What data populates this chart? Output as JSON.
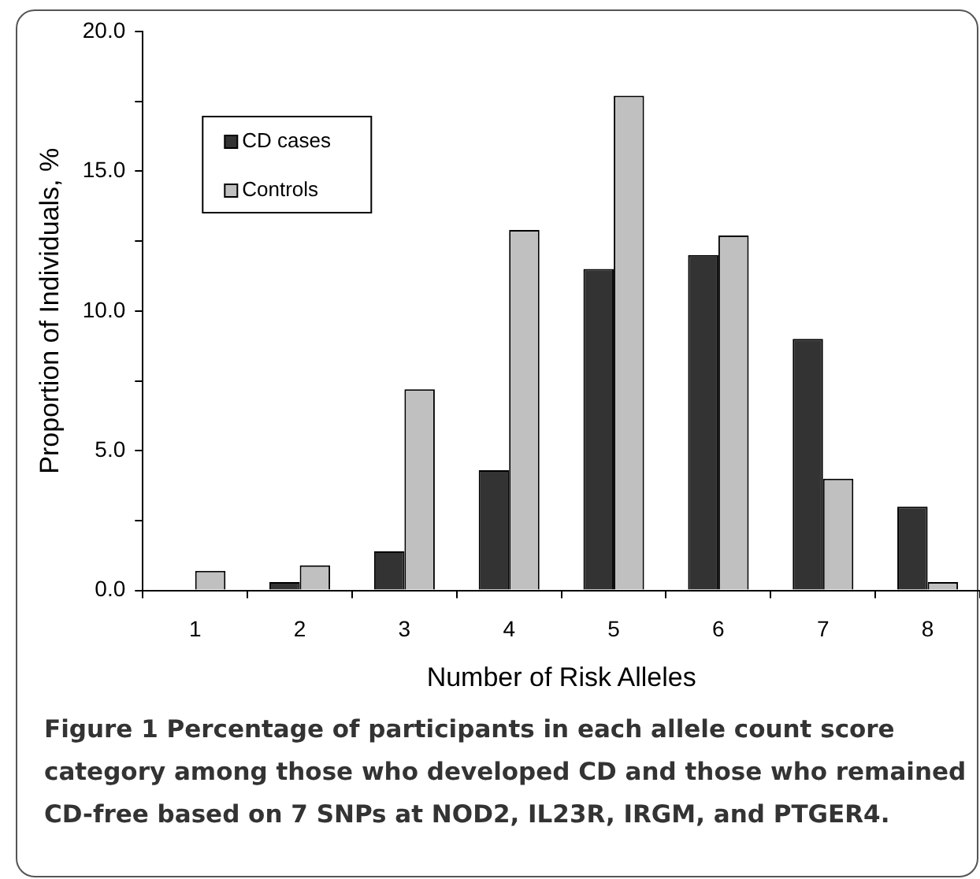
{
  "chart_data": {
    "type": "bar",
    "xlabel": "Number of Risk Alleles",
    "ylabel": "Proportion of Individuals, %",
    "categories": [
      "1",
      "2",
      "3",
      "4",
      "5",
      "6",
      "7",
      "8"
    ],
    "series": [
      {
        "name": "CD cases",
        "color": "#333333",
        "values": [
          0,
          0.3,
          1.4,
          4.3,
          11.5,
          12.0,
          9.0,
          3.0
        ]
      },
      {
        "name": "Controls",
        "color": "#c0c0c0",
        "values": [
          0.7,
          0.9,
          7.2,
          12.9,
          17.7,
          12.7,
          4.0,
          0.3
        ]
      }
    ],
    "ylim": [
      0,
      20
    ],
    "yticks": [
      {
        "value": 0,
        "label": "0.0"
      },
      {
        "value": 2.5,
        "label": null
      },
      {
        "value": 5,
        "label": "5.0"
      },
      {
        "value": 7.5,
        "label": null
      },
      {
        "value": 10,
        "label": "10.0"
      },
      {
        "value": 12.5,
        "label": null
      },
      {
        "value": 15,
        "label": "15.0"
      },
      {
        "value": 17.5,
        "label": null
      },
      {
        "value": 20,
        "label": "20.0"
      }
    ],
    "grid": false,
    "legend": "top left",
    "annotations": [
      "Figure 1 Percentage of participants in each allele count score category among those who developed CD and those who remained CD-free based on 7 SNPs at NOD2, IL23R, IRGM, and PTGER4."
    ]
  }
}
